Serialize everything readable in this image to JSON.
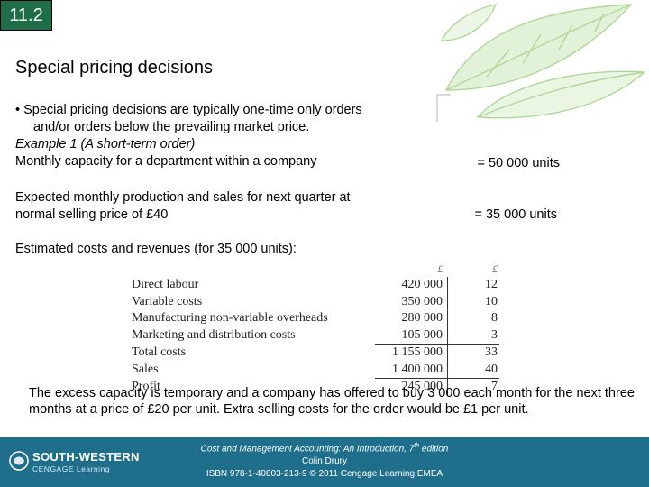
{
  "slide": {
    "number": "11.2",
    "title": "Special pricing decisions"
  },
  "body": {
    "bullet_line1": "• Special pricing decisions are typically one-time only orders",
    "bullet_line2": "and/or orders below the prevailing market price.",
    "example": "Example 1 (A short-term order)",
    "capacity_label": "Monthly capacity for a department within a company",
    "capacity_value": "= 50 000 units",
    "production_line1": "Expected monthly production and sales for next quarter at",
    "production_line2": "normal selling price of £40",
    "production_value": "= 35 000 units",
    "estimated_label": "Estimated costs and revenues (for 35 000 units):"
  },
  "cost_table": {
    "headers": [
      "£",
      "£"
    ],
    "rows": [
      {
        "label": "Direct labour",
        "total": "420 000",
        "unit": "12"
      },
      {
        "label": "Variable costs",
        "total": "350 000",
        "unit": "10"
      },
      {
        "label": "Manufacturing non-variable overheads",
        "total": "280 000",
        "unit": "8"
      },
      {
        "label": "Marketing and distribution costs",
        "total": "105 000",
        "unit": "3"
      },
      {
        "label": "Total costs",
        "total": "1 155 000",
        "unit": "33"
      },
      {
        "label": "Sales",
        "total": "1 400 000",
        "unit": "40"
      },
      {
        "label": "Profit",
        "total": "245 000",
        "unit": "7"
      }
    ]
  },
  "note": "The excess capacity is temporary and a company has offered to buy 3 000 each month for the next three months at a price of £20 per unit. Extra selling costs for the order would be £1 per unit.",
  "footer": {
    "logo_line1": "SOUTH-WESTERN",
    "logo_line2": "CENGAGE Learning",
    "book_title": "Cost and Management Accounting: An Introduction, 7",
    "book_title_sup": "th",
    "book_title_end": " edition",
    "author": "Colin Drury",
    "isbn": "ISBN 978-1-40803-213-9 © 2011 Cengage Learning EMEA"
  },
  "colors": {
    "slide_number_bg": "#1f6e4a",
    "footer_bg": "#1f6f8c",
    "leaf": "#a8cf88"
  }
}
